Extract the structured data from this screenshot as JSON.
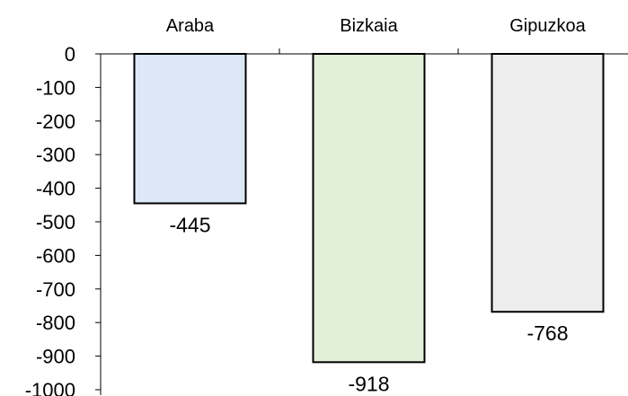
{
  "chart_data": {
    "type": "bar",
    "categories": [
      "Araba",
      "Bizkaia",
      "Gipuzkoa"
    ],
    "values": [
      -445,
      -918,
      -768
    ],
    "data_labels": [
      "-445",
      "-918",
      "-768"
    ],
    "title": "",
    "xlabel": "",
    "ylabel": "",
    "ylim": [
      -1000,
      0
    ],
    "yticks": [
      0,
      -100,
      -200,
      -300,
      -400,
      -500,
      -600,
      -700,
      -800,
      -900,
      -1000
    ],
    "ytick_labels": [
      "0",
      "-100",
      "-200",
      "-300",
      "-400",
      "-500",
      "-600",
      "-700",
      "-800",
      "-900",
      "-1000"
    ],
    "category_axis_position": "top",
    "grid": false,
    "legend": "none",
    "colors": [
      "#dce8f5",
      "#e2efd9",
      "#ededed"
    ],
    "bar_edge_color": "#000000"
  }
}
